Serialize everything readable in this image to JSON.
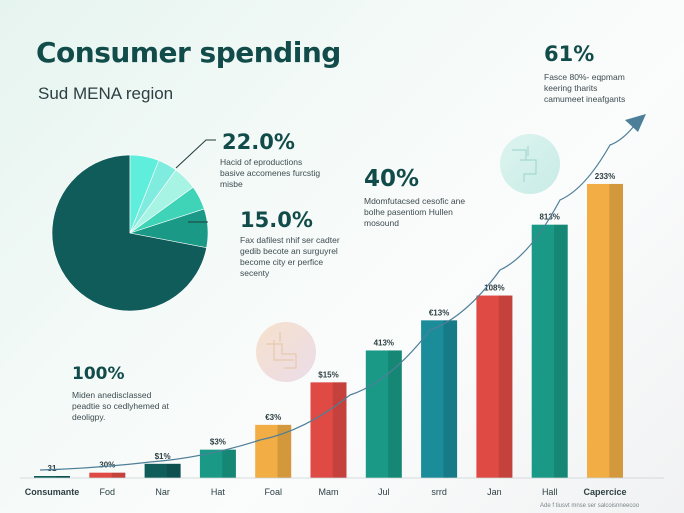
{
  "header": {
    "title": "Consumer spending",
    "subtitle": "Sud MENA region"
  },
  "callouts": [
    {
      "value": "22.0%",
      "text": "Hacid of eproductions\nbasive accomenes furcstig\nmisbe"
    },
    {
      "value": "15.0%",
      "text": "Fax dafilest nhif ser cadter\ngedib becote an surguyrel\nbecome city er perfice\nsecenty"
    },
    {
      "value": "40%",
      "text": "Mdomfutacsed cesofic ane\nbolhe pasentiom Hullen\nmosound"
    },
    {
      "value": "61%",
      "text": "Fasce 80%- eqpmam\nkeering tharits\ncamumeet ineafgants"
    },
    {
      "value": "100%",
      "text": "Miden anedisclassed\npeadtie so cedlyhemed at\ndeoligpy."
    }
  ],
  "footnote": "Ade f tiusvt mnse ser salcoisnneecoo",
  "colors": {
    "dark_teal": "#0f5c5a",
    "teal": "#1a9a86",
    "cyan": "#5eeedb",
    "orange": "#f2ad45",
    "red": "#e04a45",
    "arrow": "#4e7f98"
  },
  "chart_data": [
    {
      "type": "pie",
      "slices": [
        {
          "value": 72.0,
          "color": "#0f5c5a"
        },
        {
          "value": 8.0,
          "color": "#1a9a86"
        },
        {
          "value": 5.0,
          "color": "#3fd4b7"
        },
        {
          "value": 5.0,
          "color": "#a8f4e4"
        },
        {
          "value": 4.0,
          "color": "#80ece0"
        },
        {
          "value": 6.0,
          "color": "#5eeedb"
        }
      ]
    },
    {
      "type": "bar",
      "categories": [
        "Consumante",
        "Fod",
        "Nar",
        "Hat",
        "Foal",
        "Mam",
        "Jul",
        "srrd",
        "Jan",
        "Hall",
        "Capercice"
      ],
      "values": [
        1,
        3,
        8,
        16,
        30,
        54,
        72,
        89,
        103,
        143,
        166
      ],
      "value_labels": [
        "31",
        "30%",
        "$1%",
        "$3%",
        "€3%",
        "$15%",
        "413%",
        "€13%",
        "108%",
        "813%",
        "233%"
      ],
      "bar_colors": [
        "#0f5c5a",
        "#e04a45",
        "#0f5c5a",
        "#1a9a86",
        "#f2ad45",
        "#e04a45",
        "#1a9a86",
        "#1a8c9a",
        "#e04a45",
        "#1a9a86",
        "#f2ad45"
      ],
      "bold_categories": [
        0,
        10
      ],
      "ylim": [
        0,
        175
      ],
      "trend": "rising-arrow"
    }
  ]
}
